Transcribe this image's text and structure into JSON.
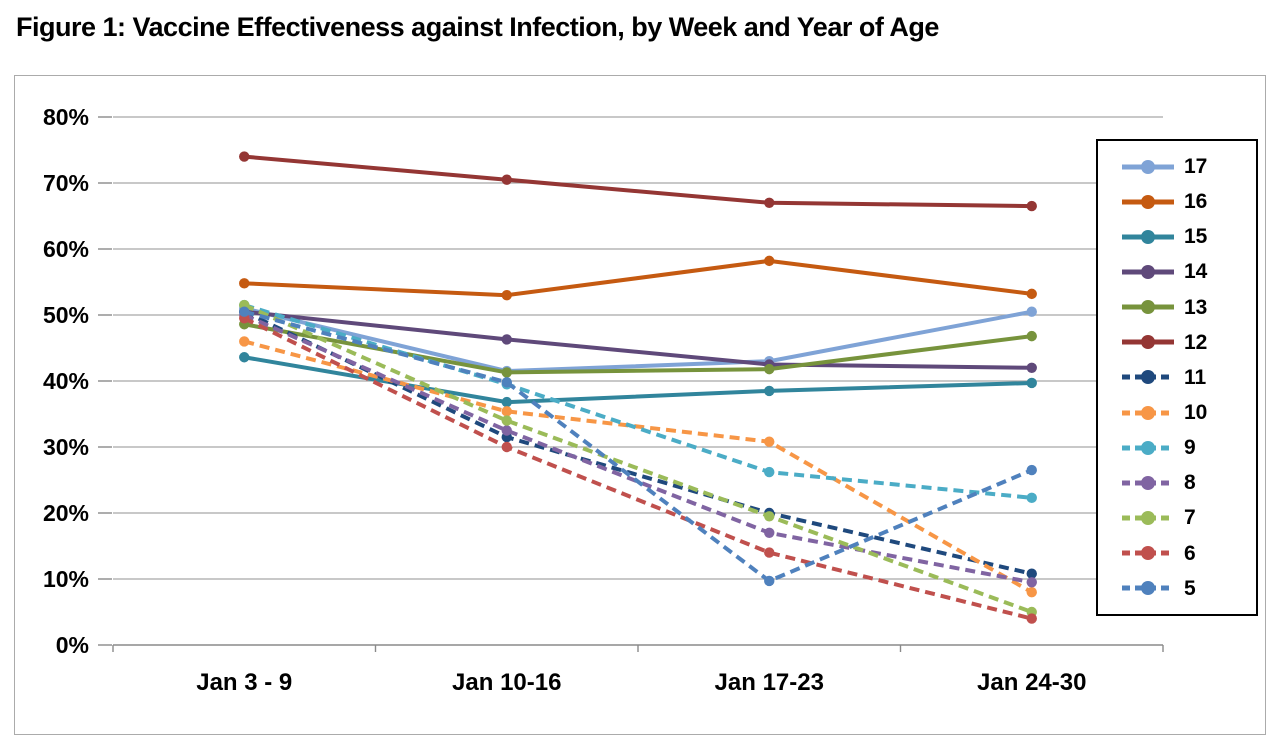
{
  "figure": {
    "title": "Figure 1: Vaccine Effectiveness against Infection, by Week and Year of Age"
  },
  "chart_data": {
    "type": "line",
    "title": "Figure 1: Vaccine Effectiveness against Infection, by Week and Year of Age",
    "xlabel": "",
    "ylabel": "",
    "categories": [
      "Jan 3 - 9",
      "Jan 10-16",
      "Jan 17-23",
      "Jan 24-30"
    ],
    "y_tick_labels": [
      "0%",
      "10%",
      "20%",
      "30%",
      "40%",
      "50%",
      "60%",
      "70%",
      "80%"
    ],
    "ylim": [
      0,
      80
    ],
    "grid": true,
    "legend_position": "right-overlay",
    "series": [
      {
        "name": "17",
        "style": "solid",
        "color": "#7FA3D6",
        "values": [
          51.0,
          41.5,
          43.0,
          50.5
        ]
      },
      {
        "name": "16",
        "style": "solid",
        "color": "#C55A11",
        "values": [
          54.8,
          53.0,
          58.2,
          53.2
        ]
      },
      {
        "name": "15",
        "style": "solid",
        "color": "#31859C",
        "values": [
          43.6,
          36.8,
          38.5,
          39.7
        ]
      },
      {
        "name": "14",
        "style": "solid",
        "color": "#5F497A",
        "values": [
          50.5,
          46.3,
          42.5,
          42.0
        ]
      },
      {
        "name": "13",
        "style": "solid",
        "color": "#77933C",
        "values": [
          48.6,
          41.3,
          41.8,
          46.8
        ]
      },
      {
        "name": "12",
        "style": "solid",
        "color": "#943634",
        "values": [
          74.0,
          70.5,
          67.0,
          66.5
        ]
      },
      {
        "name": "11",
        "style": "dashed",
        "color": "#1F497D",
        "values": [
          50.5,
          31.5,
          20.0,
          10.8
        ]
      },
      {
        "name": "10",
        "style": "dashed",
        "color": "#F79646",
        "values": [
          46.0,
          35.4,
          30.8,
          8.0
        ]
      },
      {
        "name": "9",
        "style": "dashed",
        "color": "#4BACC6",
        "values": [
          51.5,
          39.5,
          26.2,
          22.3
        ]
      },
      {
        "name": "8",
        "style": "dashed",
        "color": "#8064A2",
        "values": [
          50.0,
          32.5,
          17.0,
          9.5
        ]
      },
      {
        "name": "7",
        "style": "dashed",
        "color": "#9BBB59",
        "values": [
          51.5,
          34.0,
          19.5,
          5.0
        ]
      },
      {
        "name": "6",
        "style": "dashed",
        "color": "#C0504D",
        "values": [
          49.5,
          30.0,
          14.0,
          4.0
        ]
      },
      {
        "name": "5",
        "style": "dashed",
        "color": "#4F81BD",
        "values": [
          50.5,
          39.8,
          9.7,
          26.5
        ]
      }
    ]
  }
}
